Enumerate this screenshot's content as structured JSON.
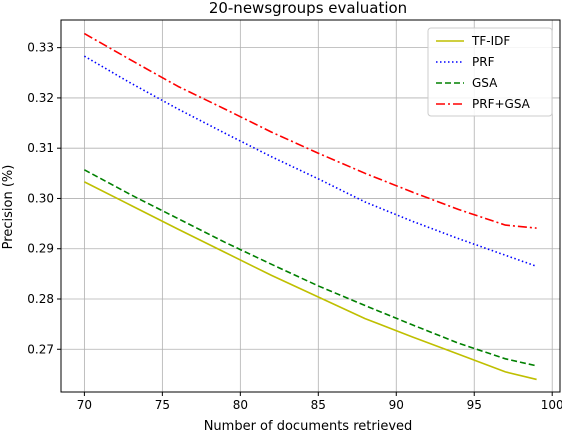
{
  "chart_data": {
    "type": "line",
    "title": "20-newsgroups evaluation",
    "xlabel": "Number of documents retrieved",
    "ylabel": "Precision (%)",
    "xlim": [
      68.5,
      100.5
    ],
    "ylim": [
      0.2615,
      0.3355
    ],
    "xticks": [
      70,
      75,
      80,
      85,
      90,
      95,
      100
    ],
    "xtick_labels": [
      "70",
      "75",
      "80",
      "85",
      "90",
      "95",
      "100"
    ],
    "yticks": [
      0.27,
      0.28,
      0.29,
      0.3,
      0.31,
      0.32,
      0.33
    ],
    "ytick_labels": [
      "0.27",
      "0.28",
      "0.29",
      "0.30",
      "0.31",
      "0.32",
      "0.33"
    ],
    "grid": true,
    "legend_position": "top-right",
    "x": [
      70,
      73,
      76,
      79,
      82,
      85,
      88,
      91,
      94,
      97,
      99
    ],
    "series": [
      {
        "name": "TF-IDF",
        "color": "#bfbf00",
        "dash": "solid",
        "values": [
          0.3033,
          0.2986,
          0.2939,
          0.2893,
          0.2847,
          0.2804,
          0.2761,
          0.2725,
          0.269,
          0.2655,
          0.264
        ]
      },
      {
        "name": "PRF",
        "color": "#0000ff",
        "dash": "dotted",
        "values": [
          0.3283,
          0.3229,
          0.3178,
          0.313,
          0.3083,
          0.3039,
          0.2993,
          0.2955,
          0.292,
          0.2887,
          0.2865
        ]
      },
      {
        "name": "GSA",
        "color": "#008000",
        "dash": "dashed",
        "values": [
          0.3057,
          0.3007,
          0.296,
          0.2913,
          0.2869,
          0.2826,
          0.2787,
          0.2749,
          0.2712,
          0.2681,
          0.2667
        ]
      },
      {
        "name": "PRF+GSA",
        "color": "#ff0000",
        "dash": "dashdot",
        "values": [
          0.3328,
          0.3275,
          0.3223,
          0.3178,
          0.3132,
          0.309,
          0.305,
          0.3013,
          0.2978,
          0.2947,
          0.2941
        ]
      }
    ]
  }
}
